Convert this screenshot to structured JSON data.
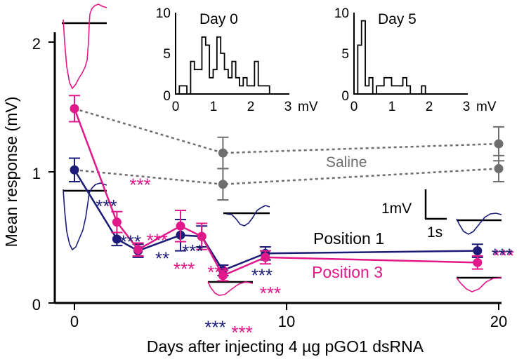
{
  "chart_data": {
    "type": "line",
    "xlabel": "Days after injecting 4 µg pGO1 dsRNA",
    "ylabel": "Mean response (mV)",
    "xlim": [
      -1,
      20
    ],
    "ylim": [
      0,
      2.2
    ],
    "xticks": [
      "0",
      "10",
      "20"
    ],
    "yticks": [
      "0",
      "1",
      "2"
    ],
    "colors": {
      "pos1": "#1c1c78",
      "pos3": "#e0188a",
      "saline": "#6e6e6e"
    },
    "series": [
      {
        "name": "Position 1",
        "color": "#1c1c78",
        "x": [
          0,
          2,
          3,
          5,
          6,
          7,
          9,
          19
        ],
        "y": [
          1.02,
          0.49,
          0.4,
          0.52,
          0.51,
          0.25,
          0.38,
          0.4
        ],
        "err": [
          0.09,
          0.05,
          0.05,
          0.12,
          0.08,
          0.04,
          0.05,
          0.05
        ]
      },
      {
        "name": "Position 3",
        "color": "#e0188a",
        "x": [
          0,
          2,
          3,
          5,
          6,
          7,
          9,
          19
        ],
        "y": [
          1.49,
          0.62,
          0.41,
          0.59,
          0.51,
          0.21,
          0.35,
          0.31
        ],
        "err": [
          0.1,
          0.08,
          0.05,
          0.12,
          0.1,
          0.04,
          0.05,
          0.05
        ]
      },
      {
        "name": "Saline",
        "color": "#6e6e6e",
        "dashed": true,
        "x": [
          0,
          7,
          20
        ],
        "y": [
          1.49,
          1.15,
          1.22
        ],
        "err": [
          0,
          0.12,
          0.13
        ]
      },
      {
        "color": "#6e6e6e",
        "dashed": true,
        "x": [
          0,
          7,
          20
        ],
        "y": [
          1.02,
          0.91,
          1.03
        ],
        "err": [
          0,
          0.12,
          0.1
        ]
      }
    ],
    "significance": [
      {
        "x": 2,
        "color": "#e0188a",
        "text": "***"
      },
      {
        "x": 3,
        "color": "#e0188a",
        "text": "***"
      },
      {
        "x": 5,
        "color": "#e0188a",
        "text": "***"
      },
      {
        "x": 6,
        "color": "#e0188a",
        "text": "***"
      },
      {
        "x": 7,
        "color": "#e0188a",
        "text": "***"
      },
      {
        "x": 9,
        "color": "#e0188a",
        "text": "***"
      },
      {
        "x": 19,
        "color": "#e0188a",
        "text": "***"
      },
      {
        "x": 2,
        "color": "#1c1c78",
        "text": "***"
      },
      {
        "x": 3,
        "color": "#1c1c78",
        "text": "***"
      },
      {
        "x": 5,
        "color": "#1c1c78",
        "text": "**"
      },
      {
        "x": 6,
        "color": "#1c1c78",
        "text": "***"
      },
      {
        "x": 7,
        "color": "#1c1c78",
        "text": "***"
      },
      {
        "x": 9,
        "color": "#1c1c78",
        "text": "***"
      },
      {
        "x": 19,
        "color": "#1c1c78",
        "text": "***"
      }
    ],
    "annotations": {
      "saline_label": "Saline",
      "position1_label": "Position 1",
      "position3_label": "Position 3",
      "scalebar_v": "1mV",
      "scalebar_h": "1s"
    },
    "insets": [
      {
        "type": "bar",
        "title": "Day 0",
        "xunit": "mV",
        "xticks": [
          "0",
          "1",
          "2",
          "3"
        ],
        "yticks": [
          "0",
          "5",
          "10"
        ],
        "bin_width": 0.1,
        "bin_start": 0,
        "counts": [
          0,
          1,
          1,
          0,
          4,
          3,
          3,
          7,
          6,
          2,
          3,
          7,
          5,
          3,
          2,
          4,
          2,
          1,
          2,
          1,
          1,
          4,
          1,
          1,
          1,
          0
        ]
      },
      {
        "type": "bar",
        "title": "Day 5",
        "xunit": "mV",
        "xticks": [
          "0",
          "1",
          "2",
          "3"
        ],
        "yticks": [
          "0",
          "5",
          "10"
        ],
        "bin_width": 0.1,
        "bin_start": 0,
        "counts": [
          0,
          6,
          9,
          1,
          2,
          0,
          1,
          1,
          2,
          2,
          1,
          1,
          1,
          2,
          1,
          0,
          0,
          0,
          1,
          0
        ]
      }
    ]
  }
}
